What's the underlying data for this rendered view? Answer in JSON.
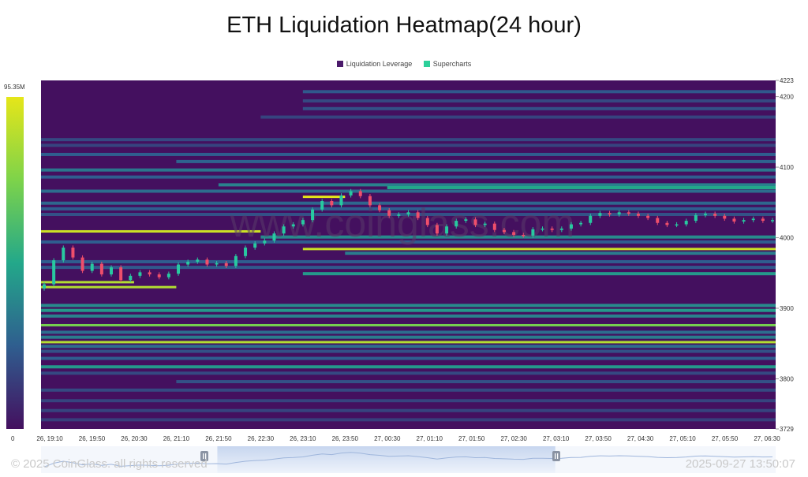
{
  "chart_data": {
    "type": "heatmap",
    "title": "ETH Liquidation Heatmap(24 hour)",
    "legend": [
      "Liquidation Leverage",
      "Supercharts"
    ],
    "colors": {
      "Liquidation Leverage": "#4b1a6b",
      "Supercharts": "#2dd09a",
      "background": "#44105f",
      "candle_up": "#28c9a0",
      "candle_down": "#ef4f6b"
    },
    "colorbar": {
      "min_label": "0",
      "max_label": "95.35M",
      "min": 0,
      "max": 95350000
    },
    "y_axis": {
      "min": 3729,
      "max": 4223,
      "ticks": [
        4223,
        4200,
        4100,
        4000,
        3900,
        3800,
        3729
      ]
    },
    "x_axis": {
      "ticks": [
        "26, 19:10",
        "26, 19:50",
        "26, 20:30",
        "26, 21:10",
        "26, 21:50",
        "26, 22:30",
        "26, 23:10",
        "26, 23:50",
        "27, 00:30",
        "27, 01:10",
        "27, 01:50",
        "27, 02:30",
        "27, 03:10",
        "27, 03:50",
        "27, 04:30",
        "27, 05:10",
        "27, 05:50",
        "27, 06:30"
      ]
    },
    "price_series": [
      3934,
      3968,
      3986,
      3972,
      3953,
      3963,
      3948,
      3958,
      3940,
      3946,
      3951,
      3948,
      3944,
      3949,
      3962,
      3966,
      3969,
      3962,
      3964,
      3960,
      3974,
      3986,
      3992,
      3996,
      4006,
      4016,
      4019,
      4025,
      4040,
      4052,
      4046,
      4060,
      4066,
      4059,
      4046,
      4039,
      4031,
      4033,
      4036,
      4028,
      4018,
      4006,
      4016,
      4024,
      4026,
      4018,
      4020,
      4011,
      4008,
      4004,
      4003,
      4012,
      4013,
      4011,
      4013,
      4019,
      4021,
      4031,
      4035,
      4033,
      4036,
      4034,
      4031,
      4028,
      4021,
      4018,
      4019,
      4024,
      4032,
      4034,
      4031,
      4027,
      4023,
      4025,
      4027,
      4024,
      4025
    ],
    "liquidation_bands": [
      {
        "price": 4207,
        "from": "26, 23:10",
        "to": "27, 06:30",
        "intensity": 0.28
      },
      {
        "price": 4194,
        "from": "26, 23:10",
        "to": "27, 06:30",
        "intensity": 0.22
      },
      {
        "price": 4183,
        "from": "26, 23:10",
        "to": "27, 06:30",
        "intensity": 0.25
      },
      {
        "price": 4171,
        "from": "26, 22:30",
        "to": "27, 06:30",
        "intensity": 0.2
      },
      {
        "price": 4139,
        "from": "26, 19:10",
        "to": "27, 06:30",
        "intensity": 0.22
      },
      {
        "price": 4131,
        "from": "26, 19:10",
        "to": "27, 06:30",
        "intensity": 0.2
      },
      {
        "price": 4118,
        "from": "26, 19:10",
        "to": "27, 06:30",
        "intensity": 0.3
      },
      {
        "price": 4108,
        "from": "26, 21:10",
        "to": "27, 06:30",
        "intensity": 0.32
      },
      {
        "price": 4096,
        "from": "26, 19:10",
        "to": "27, 06:30",
        "intensity": 0.38
      },
      {
        "price": 4086,
        "from": "26, 19:10",
        "to": "27, 06:30",
        "intensity": 0.3
      },
      {
        "price": 4075,
        "from": "26, 21:50",
        "to": "27, 06:30",
        "intensity": 0.42
      },
      {
        "price": 4071,
        "from": "27, 00:30",
        "to": "27, 06:30",
        "intensity": 0.55
      },
      {
        "price": 4066,
        "from": "26, 19:10",
        "to": "27, 06:30",
        "intensity": 0.35
      },
      {
        "price": 4058,
        "from": "26, 23:10",
        "to": "26, 23:50",
        "intensity": 1.0
      },
      {
        "price": 4049,
        "from": "26, 19:10",
        "to": "27, 06:30",
        "intensity": 0.33
      },
      {
        "price": 4041,
        "from": "26, 19:10",
        "to": "27, 06:30",
        "intensity": 0.3
      },
      {
        "price": 4033,
        "from": "26, 19:10",
        "to": "27, 06:30",
        "intensity": 0.25
      },
      {
        "price": 4009,
        "from": "26, 19:10",
        "to": "26, 22:30",
        "intensity": 0.95
      },
      {
        "price": 4001,
        "from": "26, 22:30",
        "to": "27, 06:30",
        "intensity": 0.45
      },
      {
        "price": 3994,
        "from": "26, 19:10",
        "to": "27, 06:30",
        "intensity": 0.3
      },
      {
        "price": 3984,
        "from": "26, 23:10",
        "to": "27, 06:30",
        "intensity": 0.95
      },
      {
        "price": 3978,
        "from": "26, 23:50",
        "to": "27, 06:30",
        "intensity": 0.4
      },
      {
        "price": 3966,
        "from": "26, 19:10",
        "to": "27, 06:30",
        "intensity": 0.3
      },
      {
        "price": 3958,
        "from": "26, 19:10",
        "to": "27, 06:30",
        "intensity": 0.28
      },
      {
        "price": 3949,
        "from": "26, 23:10",
        "to": "27, 06:30",
        "intensity": 0.5
      },
      {
        "price": 3937,
        "from": "26, 19:10",
        "to": "26, 20:30",
        "intensity": 0.9
      },
      {
        "price": 3930,
        "from": "26, 19:10",
        "to": "26, 21:10",
        "intensity": 0.9
      },
      {
        "price": 3904,
        "from": "26, 19:10",
        "to": "27, 06:30",
        "intensity": 0.45
      },
      {
        "price": 3897,
        "from": "26, 19:10",
        "to": "27, 06:30",
        "intensity": 0.5
      },
      {
        "price": 3889,
        "from": "26, 19:10",
        "to": "27, 06:30",
        "intensity": 0.42
      },
      {
        "price": 3876,
        "from": "26, 19:10",
        "to": "27, 06:30",
        "intensity": 0.78
      },
      {
        "price": 3866,
        "from": "26, 19:10",
        "to": "27, 06:30",
        "intensity": 0.35
      },
      {
        "price": 3859,
        "from": "26, 19:10",
        "to": "27, 06:30",
        "intensity": 0.4
      },
      {
        "price": 3852,
        "from": "26, 19:10",
        "to": "27, 06:30",
        "intensity": 0.9
      },
      {
        "price": 3846,
        "from": "26, 19:10",
        "to": "27, 06:30",
        "intensity": 0.35
      },
      {
        "price": 3839,
        "from": "26, 19:10",
        "to": "27, 06:30",
        "intensity": 0.25
      },
      {
        "price": 3829,
        "from": "26, 19:10",
        "to": "27, 06:30",
        "intensity": 0.3
      },
      {
        "price": 3817,
        "from": "26, 19:10",
        "to": "27, 06:30",
        "intensity": 0.5
      },
      {
        "price": 3808,
        "from": "26, 19:10",
        "to": "27, 06:30",
        "intensity": 0.22
      },
      {
        "price": 3796,
        "from": "26, 21:10",
        "to": "27, 06:30",
        "intensity": 0.25
      },
      {
        "price": 3784,
        "from": "26, 19:10",
        "to": "27, 06:30",
        "intensity": 0.22
      },
      {
        "price": 3769,
        "from": "26, 19:10",
        "to": "27, 06:30",
        "intensity": 0.2
      },
      {
        "price": 3755,
        "from": "26, 19:10",
        "to": "27, 06:30",
        "intensity": 0.2
      },
      {
        "price": 3742,
        "from": "26, 19:10",
        "to": "27, 06:30",
        "intensity": 0.18
      }
    ],
    "grid": false
  },
  "watermark": "www.coinglass.com",
  "footer": {
    "copyright": "© 2025 CoinGlass. all rights reserved",
    "timestamp": "2025-09-27 13:50:07"
  },
  "navigator": {
    "selection_start": 0.24,
    "selection_end": 0.7,
    "handle_icon": "pause-handle-icon"
  }
}
